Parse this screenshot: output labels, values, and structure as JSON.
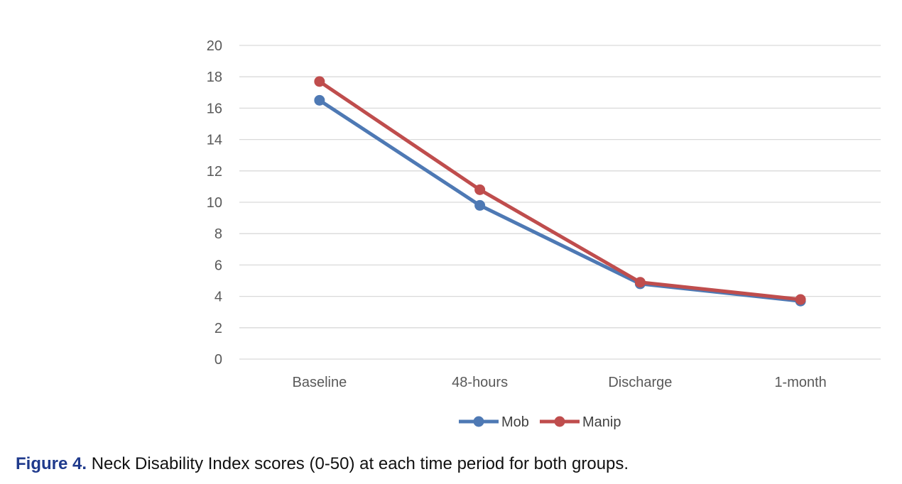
{
  "chart_data": {
    "type": "line",
    "categories": [
      "Baseline",
      "48-hours",
      "Discharge",
      "1-month"
    ],
    "series": [
      {
        "name": "Mob",
        "values": [
          16.5,
          9.8,
          4.8,
          3.7
        ],
        "color": "#4e79b4"
      },
      {
        "name": "Manip",
        "values": [
          17.7,
          10.8,
          4.9,
          3.8
        ],
        "color": "#bf4d4d"
      }
    ],
    "ylim": [
      0,
      20
    ],
    "yticks": [
      0,
      2,
      4,
      6,
      8,
      10,
      12,
      14,
      16,
      18,
      20
    ],
    "grid": true,
    "legend_position": "bottom",
    "title": "",
    "xlabel": "",
    "ylabel": ""
  },
  "caption": {
    "label": "Figure 4.",
    "text": " Neck Disability Index scores (0-50) at each time period for both groups."
  }
}
